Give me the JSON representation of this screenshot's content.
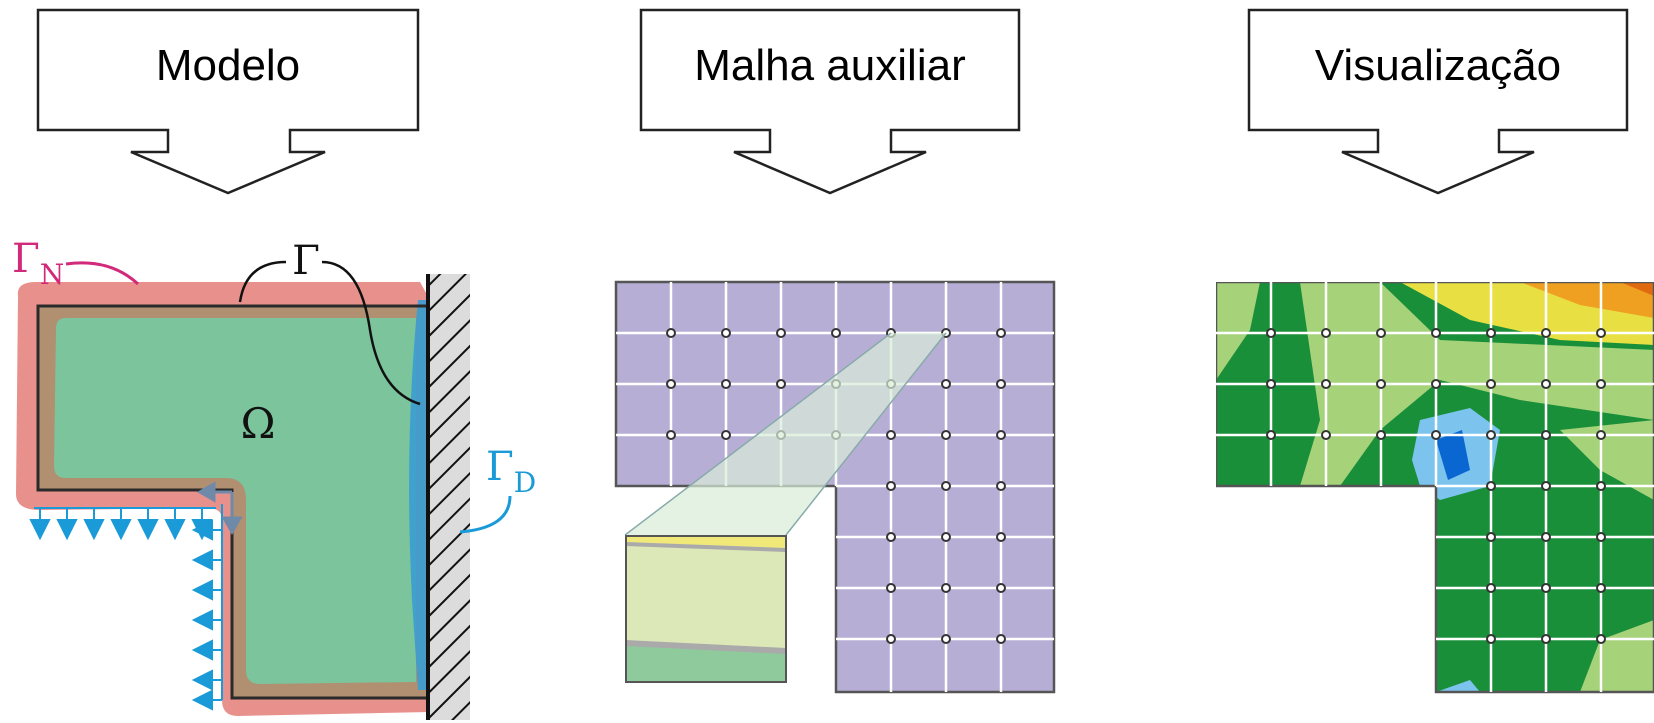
{
  "callouts": [
    {
      "id": "modelo",
      "label": "Modelo"
    },
    {
      "id": "malha",
      "label": "Malha auxiliar"
    },
    {
      "id": "visualizacao",
      "label": "Visualização"
    }
  ],
  "model": {
    "gamma_label": "Γ",
    "gamma_n_base": "Γ",
    "gamma_n_sub": "N",
    "gamma_d_base": "Γ",
    "gamma_d_sub": "D",
    "omega_label": "Ω"
  },
  "colors": {
    "domain_green": "#7cc49c",
    "neumann_pink": "#e8918c",
    "dirichlet_blue": "#3a9dd3",
    "load_arrow_blue": "#1a9ad6",
    "grid_purple": "#b7aed6",
    "gamma_n_text": "#d12a7a",
    "gamma_d_text": "#1a9ad6"
  }
}
